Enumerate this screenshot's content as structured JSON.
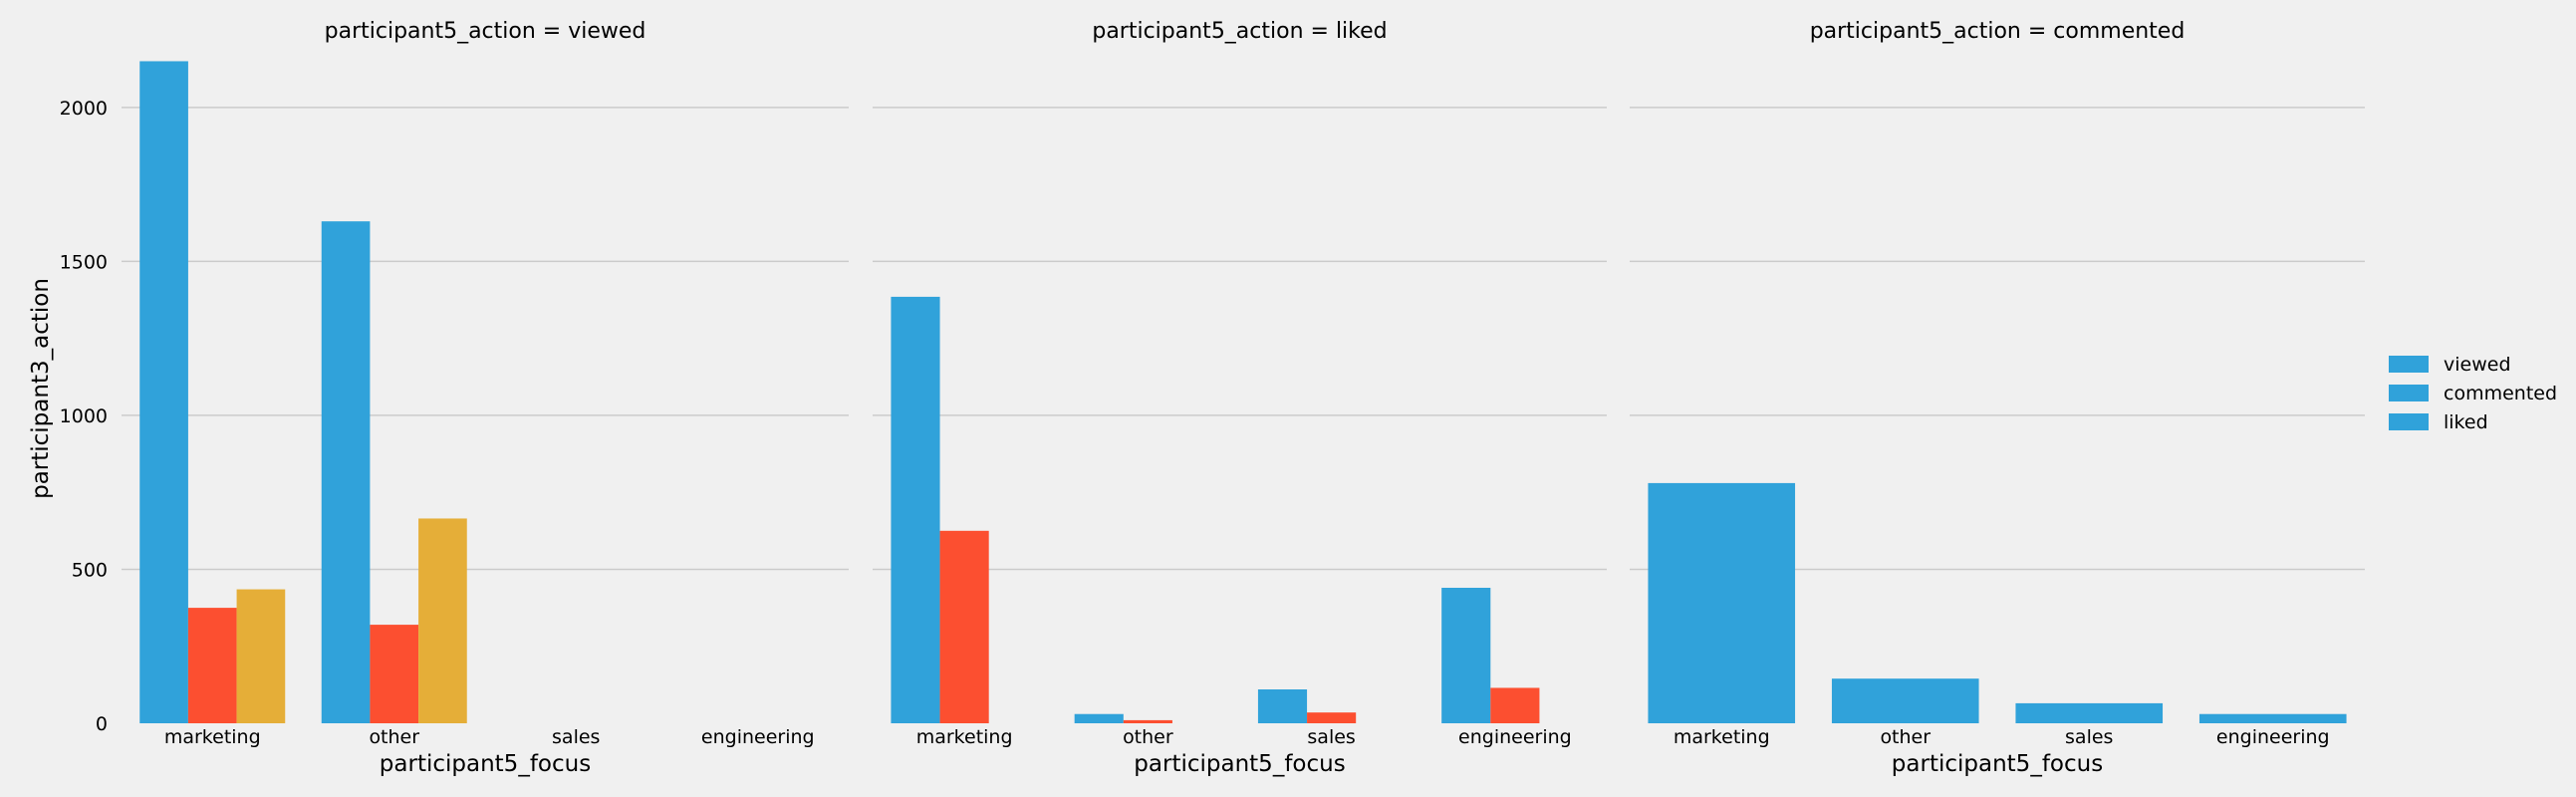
{
  "chart_data": {
    "type": "bar",
    "facet_titles": [
      "participant5_action = viewed",
      "participant5_action = liked",
      "participant5_action = commented"
    ],
    "categories": [
      "marketing",
      "other",
      "sales",
      "engineering"
    ],
    "xlabel": "participant5_focus",
    "ylabel": "participant3_action",
    "ylim": [
      0,
      2200
    ],
    "yticks": [
      0,
      500,
      1000,
      1500,
      2000
    ],
    "grid": "horizontal",
    "legend_position": "right",
    "legend_entries": [
      "viewed",
      "commented",
      "liked"
    ],
    "series_colors": [
      "#30a2da",
      "#fc4f30",
      "#e5ae38"
    ],
    "legend_colors": [
      "#30a2da",
      "#30a2da",
      "#30a2da"
    ],
    "facets": [
      {
        "series": [
          {
            "values": [
              2150,
              1630,
              null,
              null
            ]
          },
          {
            "values": [
              375,
              320,
              null,
              null
            ]
          },
          {
            "values": [
              435,
              665,
              null,
              null
            ]
          }
        ]
      },
      {
        "series": [
          {
            "values": [
              1385,
              30,
              110,
              440
            ]
          },
          {
            "values": [
              625,
              10,
              35,
              115
            ]
          },
          {
            "values": [
              null,
              null,
              null,
              null
            ]
          }
        ]
      },
      {
        "series": [
          {
            "values": [
              780,
              145,
              65,
              30
            ]
          }
        ]
      }
    ]
  }
}
